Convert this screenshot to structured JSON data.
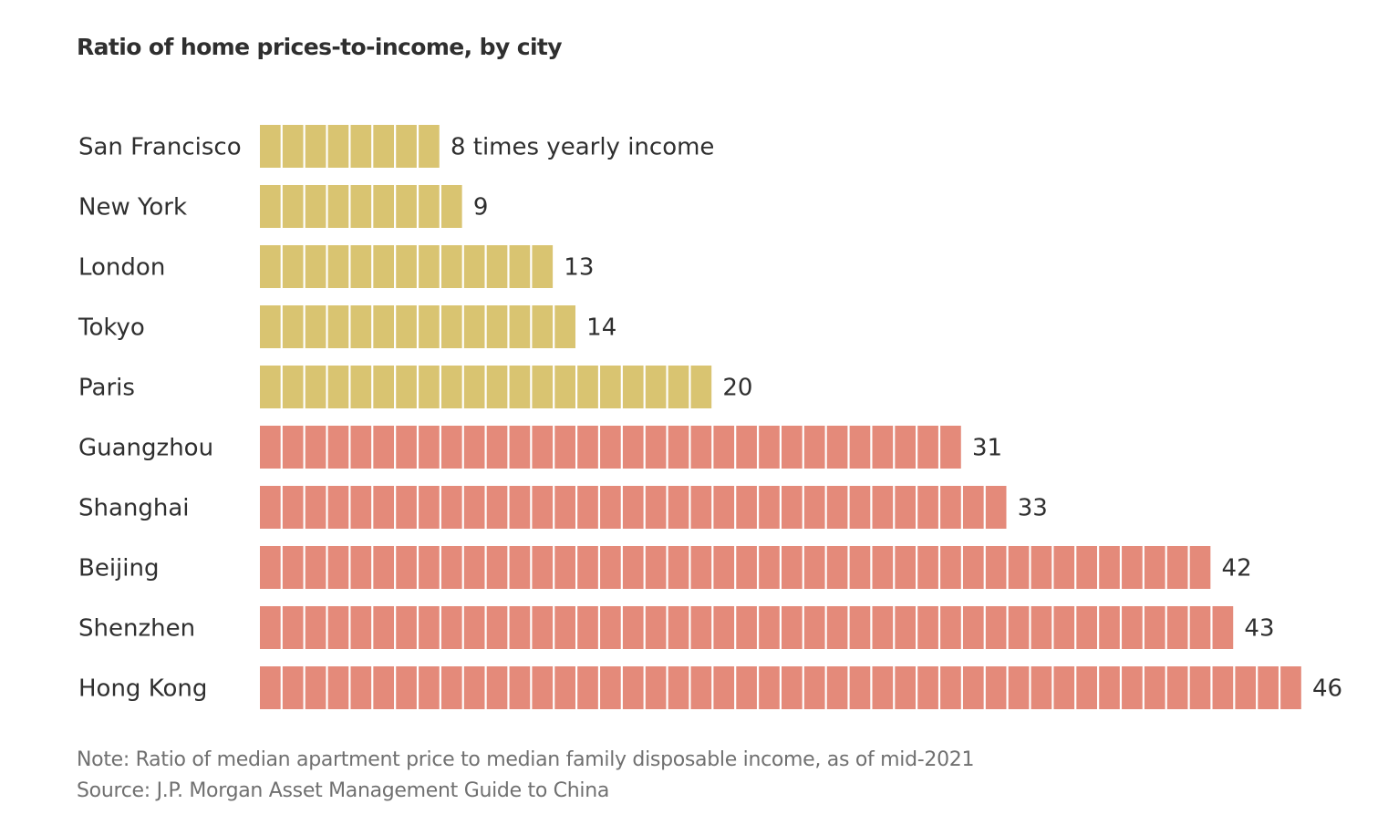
{
  "chart_data": {
    "type": "bar",
    "orientation": "horizontal",
    "style": "unit-blocks",
    "title": "Ratio of home prices-to-income, by city",
    "categories": [
      "San Francisco",
      "New York",
      "London",
      "Tokyo",
      "Paris",
      "Guangzhou",
      "Shanghai",
      "Beijing",
      "Shenzhen",
      "Hong Kong"
    ],
    "values": [
      8,
      9,
      13,
      14,
      20,
      31,
      33,
      42,
      43,
      46
    ],
    "value_labels": [
      "8 times yearly income",
      "9",
      "13",
      "14",
      "20",
      "31",
      "33",
      "42",
      "43",
      "46"
    ],
    "groups": [
      "other",
      "other",
      "other",
      "other",
      "other",
      "china",
      "china",
      "china",
      "china",
      "china"
    ],
    "group_colors": {
      "other": "#D9C471",
      "china": "#E48A7A"
    },
    "xlabel": "",
    "ylabel": "",
    "xlim": [
      0,
      46
    ],
    "grid": false,
    "legend": "none",
    "note": "Note: Ratio of median apartment price to median family disposable income, as of mid-2021",
    "source": "Source: J.P. Morgan Asset Management Guide to China"
  }
}
